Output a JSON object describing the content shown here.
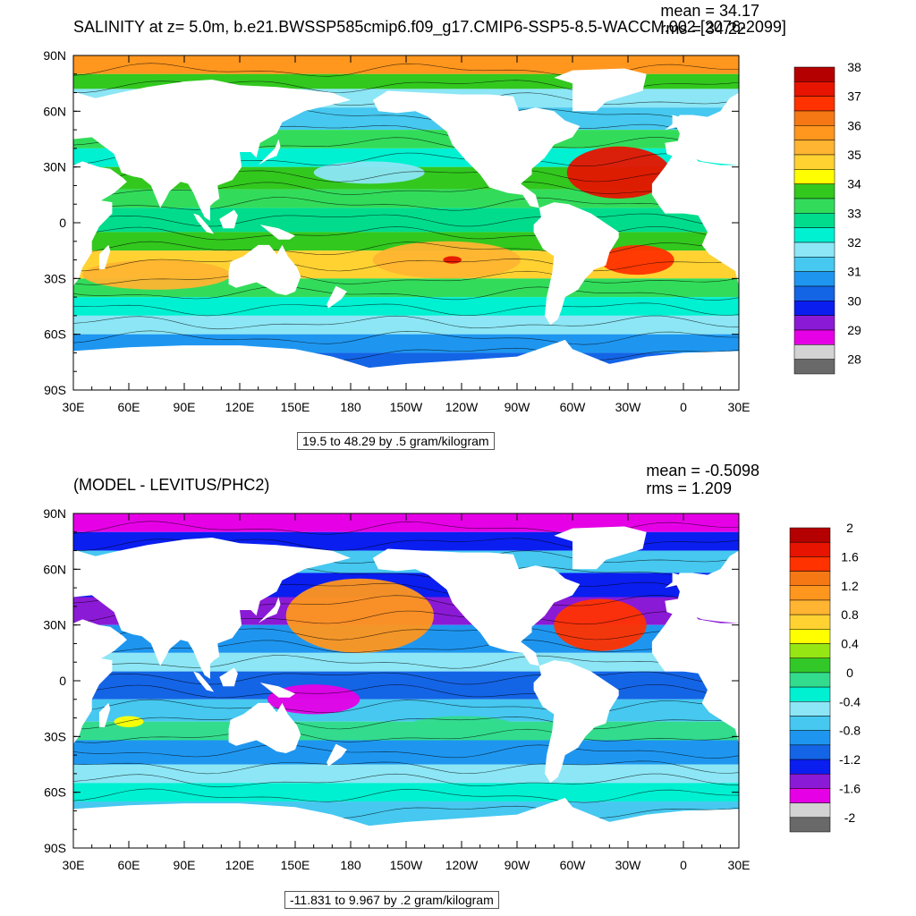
{
  "colors": {
    "land": "#ffffff",
    "frame": "#000000",
    "palette": [
      "#696969",
      "#d3d3d3",
      "#e600e6",
      "#8b1ad6",
      "#0a1ef0",
      "#1464e6",
      "#1e96f0",
      "#46c8f0",
      "#8ce6f5",
      "#00f0d2",
      "#32dc8c",
      "#28c828",
      "#96e614",
      "#ffff00",
      "#ffd232",
      "#ffb432",
      "#ff961e",
      "#f57814",
      "#ff3200",
      "#e61400",
      "#b40000"
    ]
  },
  "chart_data": [
    {
      "type": "heatmap",
      "title": "SALINITY at z=   5.0m, b.e21.BWSSP585cmip6.f09_g17.CMIP6-SSP5-8.5-WACCM.002 [2076-2099]",
      "mean_label": "mean = 34.17",
      "rms_label": "rms = 34.22",
      "subtitle": "19.5 to 48.29 by .5 gram/kilogram",
      "x_ticks": [
        "30E",
        "60E",
        "90E",
        "120E",
        "150E",
        "180",
        "150W",
        "120W",
        "90W",
        "60W",
        "30W",
        "0",
        "30E"
      ],
      "y_ticks": [
        "90N",
        "60N",
        "30N",
        "0",
        "30S",
        "60S",
        "90S"
      ],
      "xlim": [
        30,
        390
      ],
      "ylim": [
        -90,
        90
      ],
      "colorbar": {
        "labels": [
          "38",
          "37",
          "36",
          "35",
          "34",
          "33",
          "32",
          "31",
          "30",
          "29",
          "28"
        ],
        "colors": [
          "#b40000",
          "#e61400",
          "#ff3200",
          "#f57814",
          "#ff961e",
          "#ffb432",
          "#ffd232",
          "#ffff00",
          "#32c81e",
          "#32dc5a",
          "#00dc8c",
          "#00f0d2",
          "#8ce6f5",
          "#46c8f0",
          "#1e96f0",
          "#1464e6",
          "#0a1ef0",
          "#8b1ad6",
          "#e600e6",
          "#d3d3d3",
          "#696969"
        ]
      }
    },
    {
      "type": "heatmap",
      "title": "(MODEL - LEVITUS/PHC2)",
      "mean_label": "mean = -0.5098",
      "rms_label": "rms = 1.209",
      "subtitle": "-11.831 to 9.967 by .2 gram/kilogram",
      "x_ticks": [
        "30E",
        "60E",
        "90E",
        "120E",
        "150E",
        "180",
        "150W",
        "120W",
        "90W",
        "60W",
        "30W",
        "0",
        "30E"
      ],
      "y_ticks": [
        "90N",
        "60N",
        "30N",
        "0",
        "30S",
        "60S",
        "90S"
      ],
      "xlim": [
        30,
        390
      ],
      "ylim": [
        -90,
        90
      ],
      "colorbar": {
        "labels": [
          "2",
          "1.6",
          "1.2",
          "0.8",
          "0.4",
          "0",
          "-0.4",
          "-0.8",
          "-1.2",
          "-1.6",
          "-2"
        ],
        "colors": [
          "#b40000",
          "#e61400",
          "#ff3200",
          "#f57814",
          "#ff961e",
          "#ffb432",
          "#ffd232",
          "#ffff00",
          "#96e614",
          "#32c828",
          "#32dc8c",
          "#00f0d2",
          "#8ce6f5",
          "#46c8f0",
          "#1e96f0",
          "#1464e6",
          "#0a1ef0",
          "#8b1ad6",
          "#e600e6",
          "#d3d3d3",
          "#696969"
        ]
      }
    }
  ]
}
